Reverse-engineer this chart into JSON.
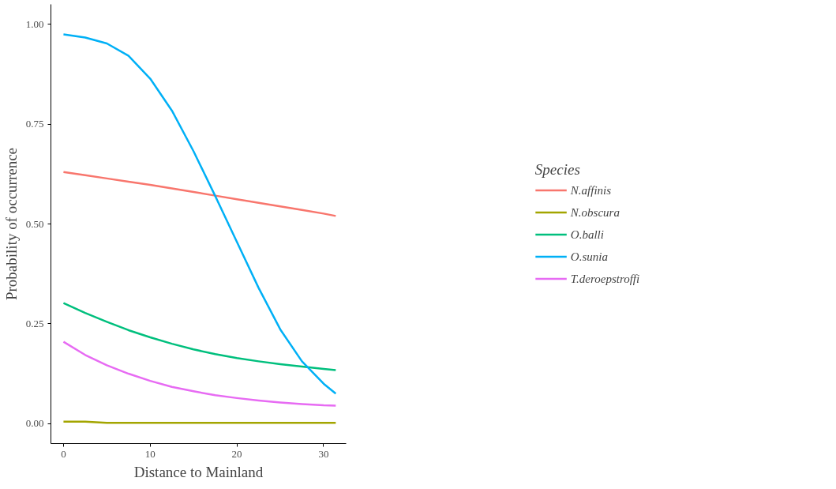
{
  "chart_data": {
    "type": "line",
    "xlabel": "Distance to Mainland",
    "ylabel": "Probability of occurrence",
    "legend_title": "Species",
    "legend": "right",
    "grid": false,
    "line_style": "solid",
    "marker": "none",
    "xlim": [
      -1.45,
      32.6
    ],
    "ylim": [
      -0.05,
      1.05
    ],
    "xticks": [
      0,
      10,
      20,
      30
    ],
    "yticks": [
      {
        "value": 0,
        "label": "0.00"
      },
      {
        "value": 0.25,
        "label": "0.25"
      },
      {
        "value": 0.5,
        "label": "0.50"
      },
      {
        "value": 0.75,
        "label": "0.75"
      },
      {
        "value": 1,
        "label": "1.00"
      }
    ],
    "x": [
      0,
      2.5,
      5,
      7.5,
      10,
      12.5,
      15,
      17.5,
      20,
      22.5,
      25,
      27.5,
      30,
      31.4
    ],
    "series": [
      {
        "name": "N.affinis",
        "color": "#f8766d",
        "values": [
          0.63,
          0.622,
          0.614,
          0.606,
          0.598,
          0.589,
          0.58,
          0.571,
          0.562,
          0.553,
          0.544,
          0.535,
          0.526,
          0.52
        ]
      },
      {
        "name": "N.obscura",
        "color": "#a3a500",
        "values": [
          0.005,
          0.005,
          0.002,
          0.002,
          0.002,
          0.002,
          0.002,
          0.002,
          0.002,
          0.002,
          0.002,
          0.002,
          0.002,
          0.002
        ]
      },
      {
        "name": "O.balli",
        "color": "#00bf7d",
        "values": [
          0.302,
          0.277,
          0.255,
          0.234,
          0.216,
          0.2,
          0.186,
          0.174,
          0.164,
          0.156,
          0.149,
          0.143,
          0.137,
          0.134
        ]
      },
      {
        "name": "O.sunia",
        "color": "#00b0f6",
        "values": [
          0.975,
          0.967,
          0.952,
          0.921,
          0.864,
          0.784,
          0.682,
          0.57,
          0.455,
          0.34,
          0.236,
          0.156,
          0.1,
          0.075
        ]
      },
      {
        "name": "T.deroepstroffi",
        "color": "#e76bf3",
        "values": [
          0.205,
          0.172,
          0.146,
          0.125,
          0.107,
          0.092,
          0.081,
          0.071,
          0.064,
          0.058,
          0.053,
          0.049,
          0.046,
          0.045
        ]
      }
    ]
  }
}
